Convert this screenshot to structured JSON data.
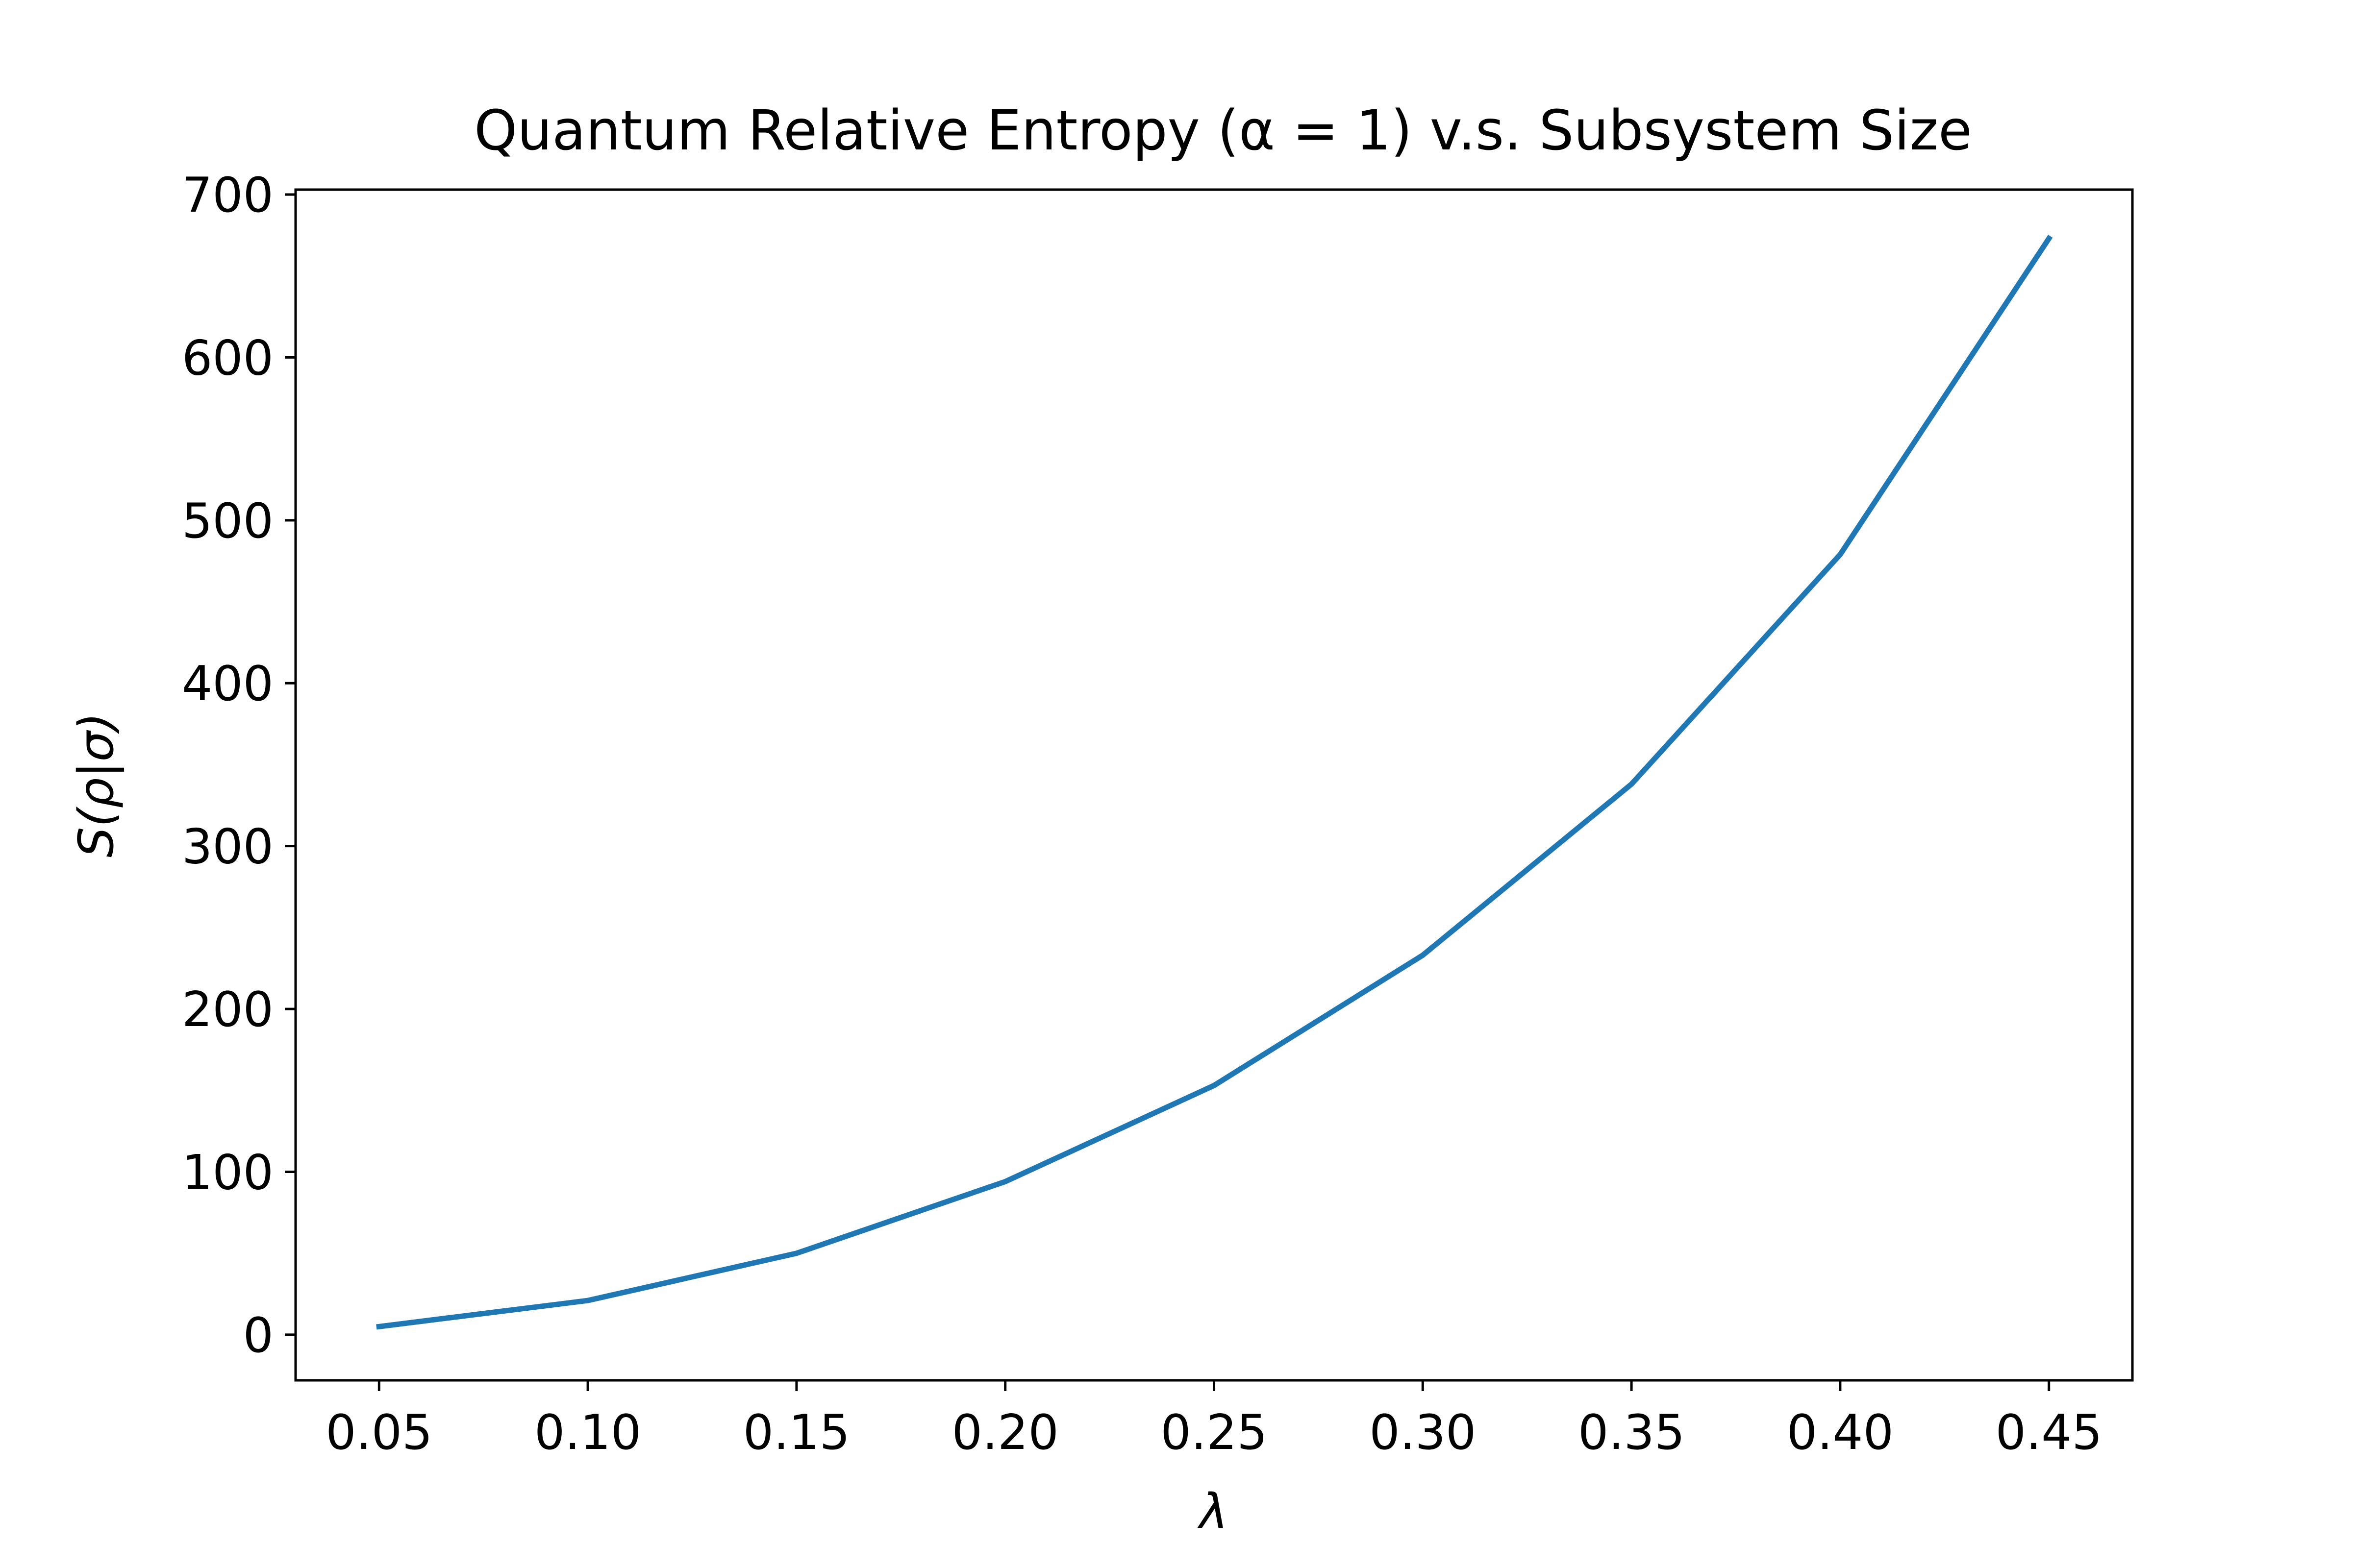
{
  "chart_data": {
    "type": "line",
    "title": "Quantum Relative Entropy (α = 1) v.s. Subsystem Size",
    "xlabel": "λ",
    "ylabel": "S(ρ|σ)",
    "x": [
      0.05,
      0.1,
      0.15,
      0.2,
      0.25,
      0.3,
      0.35,
      0.4,
      0.45
    ],
    "series": [
      {
        "values": [
          5,
          21,
          50,
          94,
          153,
          233,
          338,
          479,
          673
        ]
      }
    ],
    "xlim": [
      0.03,
      0.47
    ],
    "ylim": [
      -28,
      703
    ],
    "xticks": [
      "0.05",
      "0.10",
      "0.15",
      "0.20",
      "0.25",
      "0.30",
      "0.35",
      "0.40",
      "0.45"
    ],
    "yticks": [
      "0",
      "100",
      "200",
      "300",
      "400",
      "500",
      "600",
      "700"
    ],
    "grid": false,
    "legend": false,
    "colors": {
      "line": "#1f77b4",
      "axes": "#000000",
      "background": "#ffffff"
    }
  }
}
